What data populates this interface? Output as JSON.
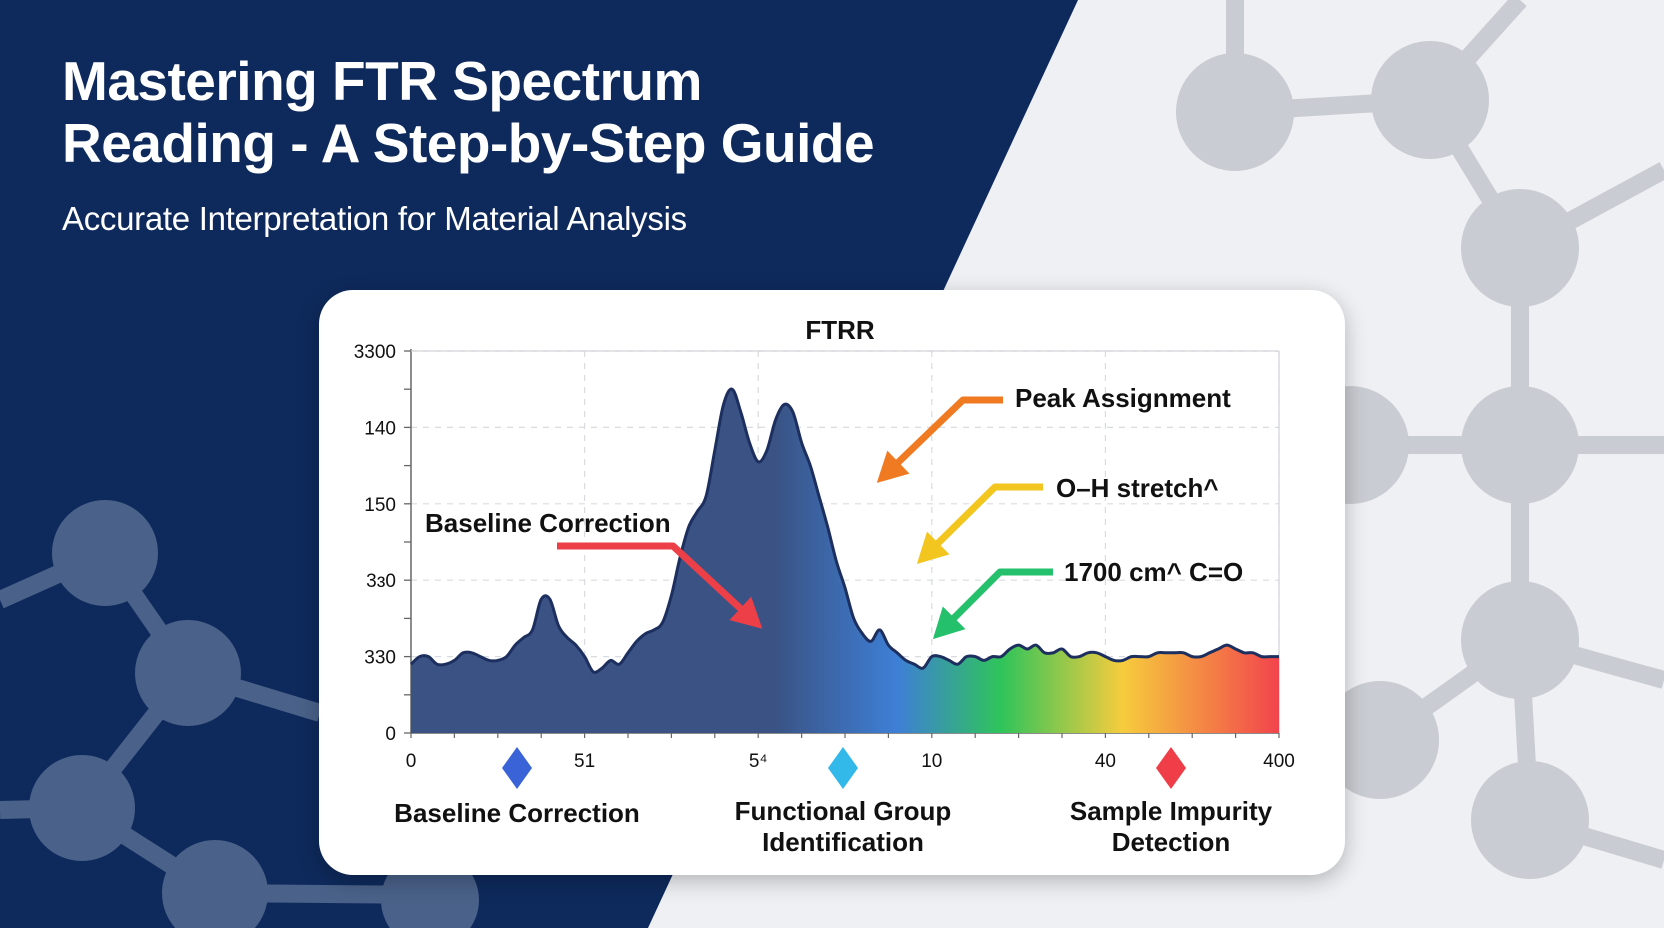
{
  "header": {
    "title_line1": "Mastering FTR Spectrum",
    "title_line2": "Reading - A Step-by-Step Guide",
    "subtitle": "Accurate Interpretation for Material Analysis"
  },
  "colors": {
    "navy": "#0e2a5c",
    "light_bg": "#eef0f3",
    "molecule_light": "#c9ccd2",
    "molecule_dark": "#4a6289",
    "area_dark": "#3a5384",
    "area_blue": "#3e7fd6",
    "area_green": "#2fc45a",
    "area_yellow": "#f6cc3d",
    "area_red": "#f2444c"
  },
  "chart_data": {
    "type": "area",
    "title": "FTRR",
    "xlabel": "",
    "ylabel": "",
    "grid": true,
    "x_ticks": [
      "0",
      "51",
      "5⁴",
      "10",
      "40",
      "400"
    ],
    "y_ticks": [
      "0",
      "330",
      "3ɜ0",
      "150",
      "140",
      "3300"
    ],
    "ylim_relative": [
      0,
      1
    ],
    "series": [
      {
        "x": [
          0,
          0.01,
          0.02,
          0.03,
          0.04,
          0.05,
          0.06,
          0.07,
          0.08,
          0.09,
          0.1,
          0.11,
          0.12,
          0.13,
          0.14,
          0.15,
          0.16,
          0.17,
          0.18,
          0.19,
          0.2,
          0.21,
          0.22,
          0.23,
          0.24,
          0.25,
          0.26,
          0.27,
          0.28,
          0.29,
          0.3,
          0.31,
          0.32,
          0.33,
          0.34,
          0.35,
          0.36,
          0.37,
          0.38,
          0.39,
          0.4,
          0.41,
          0.42,
          0.43,
          0.44,
          0.45,
          0.46,
          0.47,
          0.48,
          0.49,
          0.5,
          0.51,
          0.52,
          0.53,
          0.54,
          0.55,
          0.56,
          0.57,
          0.58,
          0.59,
          0.6,
          0.61,
          0.62,
          0.63,
          0.64,
          0.65,
          0.66,
          0.67,
          0.68,
          0.69,
          0.7,
          0.71,
          0.72,
          0.73,
          0.74,
          0.75,
          0.76,
          0.77,
          0.78,
          0.79,
          0.8,
          0.81,
          0.82,
          0.83,
          0.84,
          0.85,
          0.86,
          0.87,
          0.88,
          0.89,
          0.9,
          0.91,
          0.92,
          0.93,
          0.94,
          0.95,
          0.96,
          0.97,
          0.98,
          0.99,
          1.0
        ],
        "values": [
          0.18,
          0.2,
          0.2,
          0.18,
          0.18,
          0.19,
          0.21,
          0.21,
          0.2,
          0.19,
          0.19,
          0.2,
          0.23,
          0.25,
          0.27,
          0.35,
          0.35,
          0.28,
          0.25,
          0.23,
          0.2,
          0.16,
          0.17,
          0.19,
          0.18,
          0.21,
          0.24,
          0.26,
          0.27,
          0.29,
          0.36,
          0.46,
          0.54,
          0.58,
          0.62,
          0.74,
          0.86,
          0.9,
          0.84,
          0.76,
          0.71,
          0.74,
          0.82,
          0.86,
          0.84,
          0.76,
          0.7,
          0.62,
          0.54,
          0.45,
          0.38,
          0.3,
          0.26,
          0.24,
          0.27,
          0.23,
          0.21,
          0.19,
          0.18,
          0.17,
          0.2,
          0.2,
          0.19,
          0.18,
          0.2,
          0.2,
          0.19,
          0.2,
          0.2,
          0.22,
          0.23,
          0.22,
          0.23,
          0.21,
          0.21,
          0.22,
          0.2,
          0.2,
          0.21,
          0.21,
          0.2,
          0.19,
          0.19,
          0.2,
          0.2,
          0.2,
          0.21,
          0.21,
          0.21,
          0.21,
          0.2,
          0.2,
          0.21,
          0.22,
          0.23,
          0.22,
          0.21,
          0.21,
          0.2,
          0.2,
          0.2
        ]
      }
    ],
    "annotations": [
      {
        "text": "Peak Assignment",
        "color": "#f07a22"
      },
      {
        "text": "O–H stretch^",
        "color": "#f3c61f"
      },
      {
        "text": "1700 cm^ C=O",
        "color": "#25c06b"
      },
      {
        "text": "Baseline Correction",
        "color": "#ec3f47"
      }
    ],
    "markers": [
      {
        "label": "Baseline Correction",
        "color": "#3a63d8"
      },
      {
        "label_line1": "Functional Group",
        "label_line2": "Identification",
        "color": "#33b8ea"
      },
      {
        "label_line1": "Sample Impurity",
        "label_line2": "Detection",
        "color": "#ef3e48"
      }
    ]
  }
}
